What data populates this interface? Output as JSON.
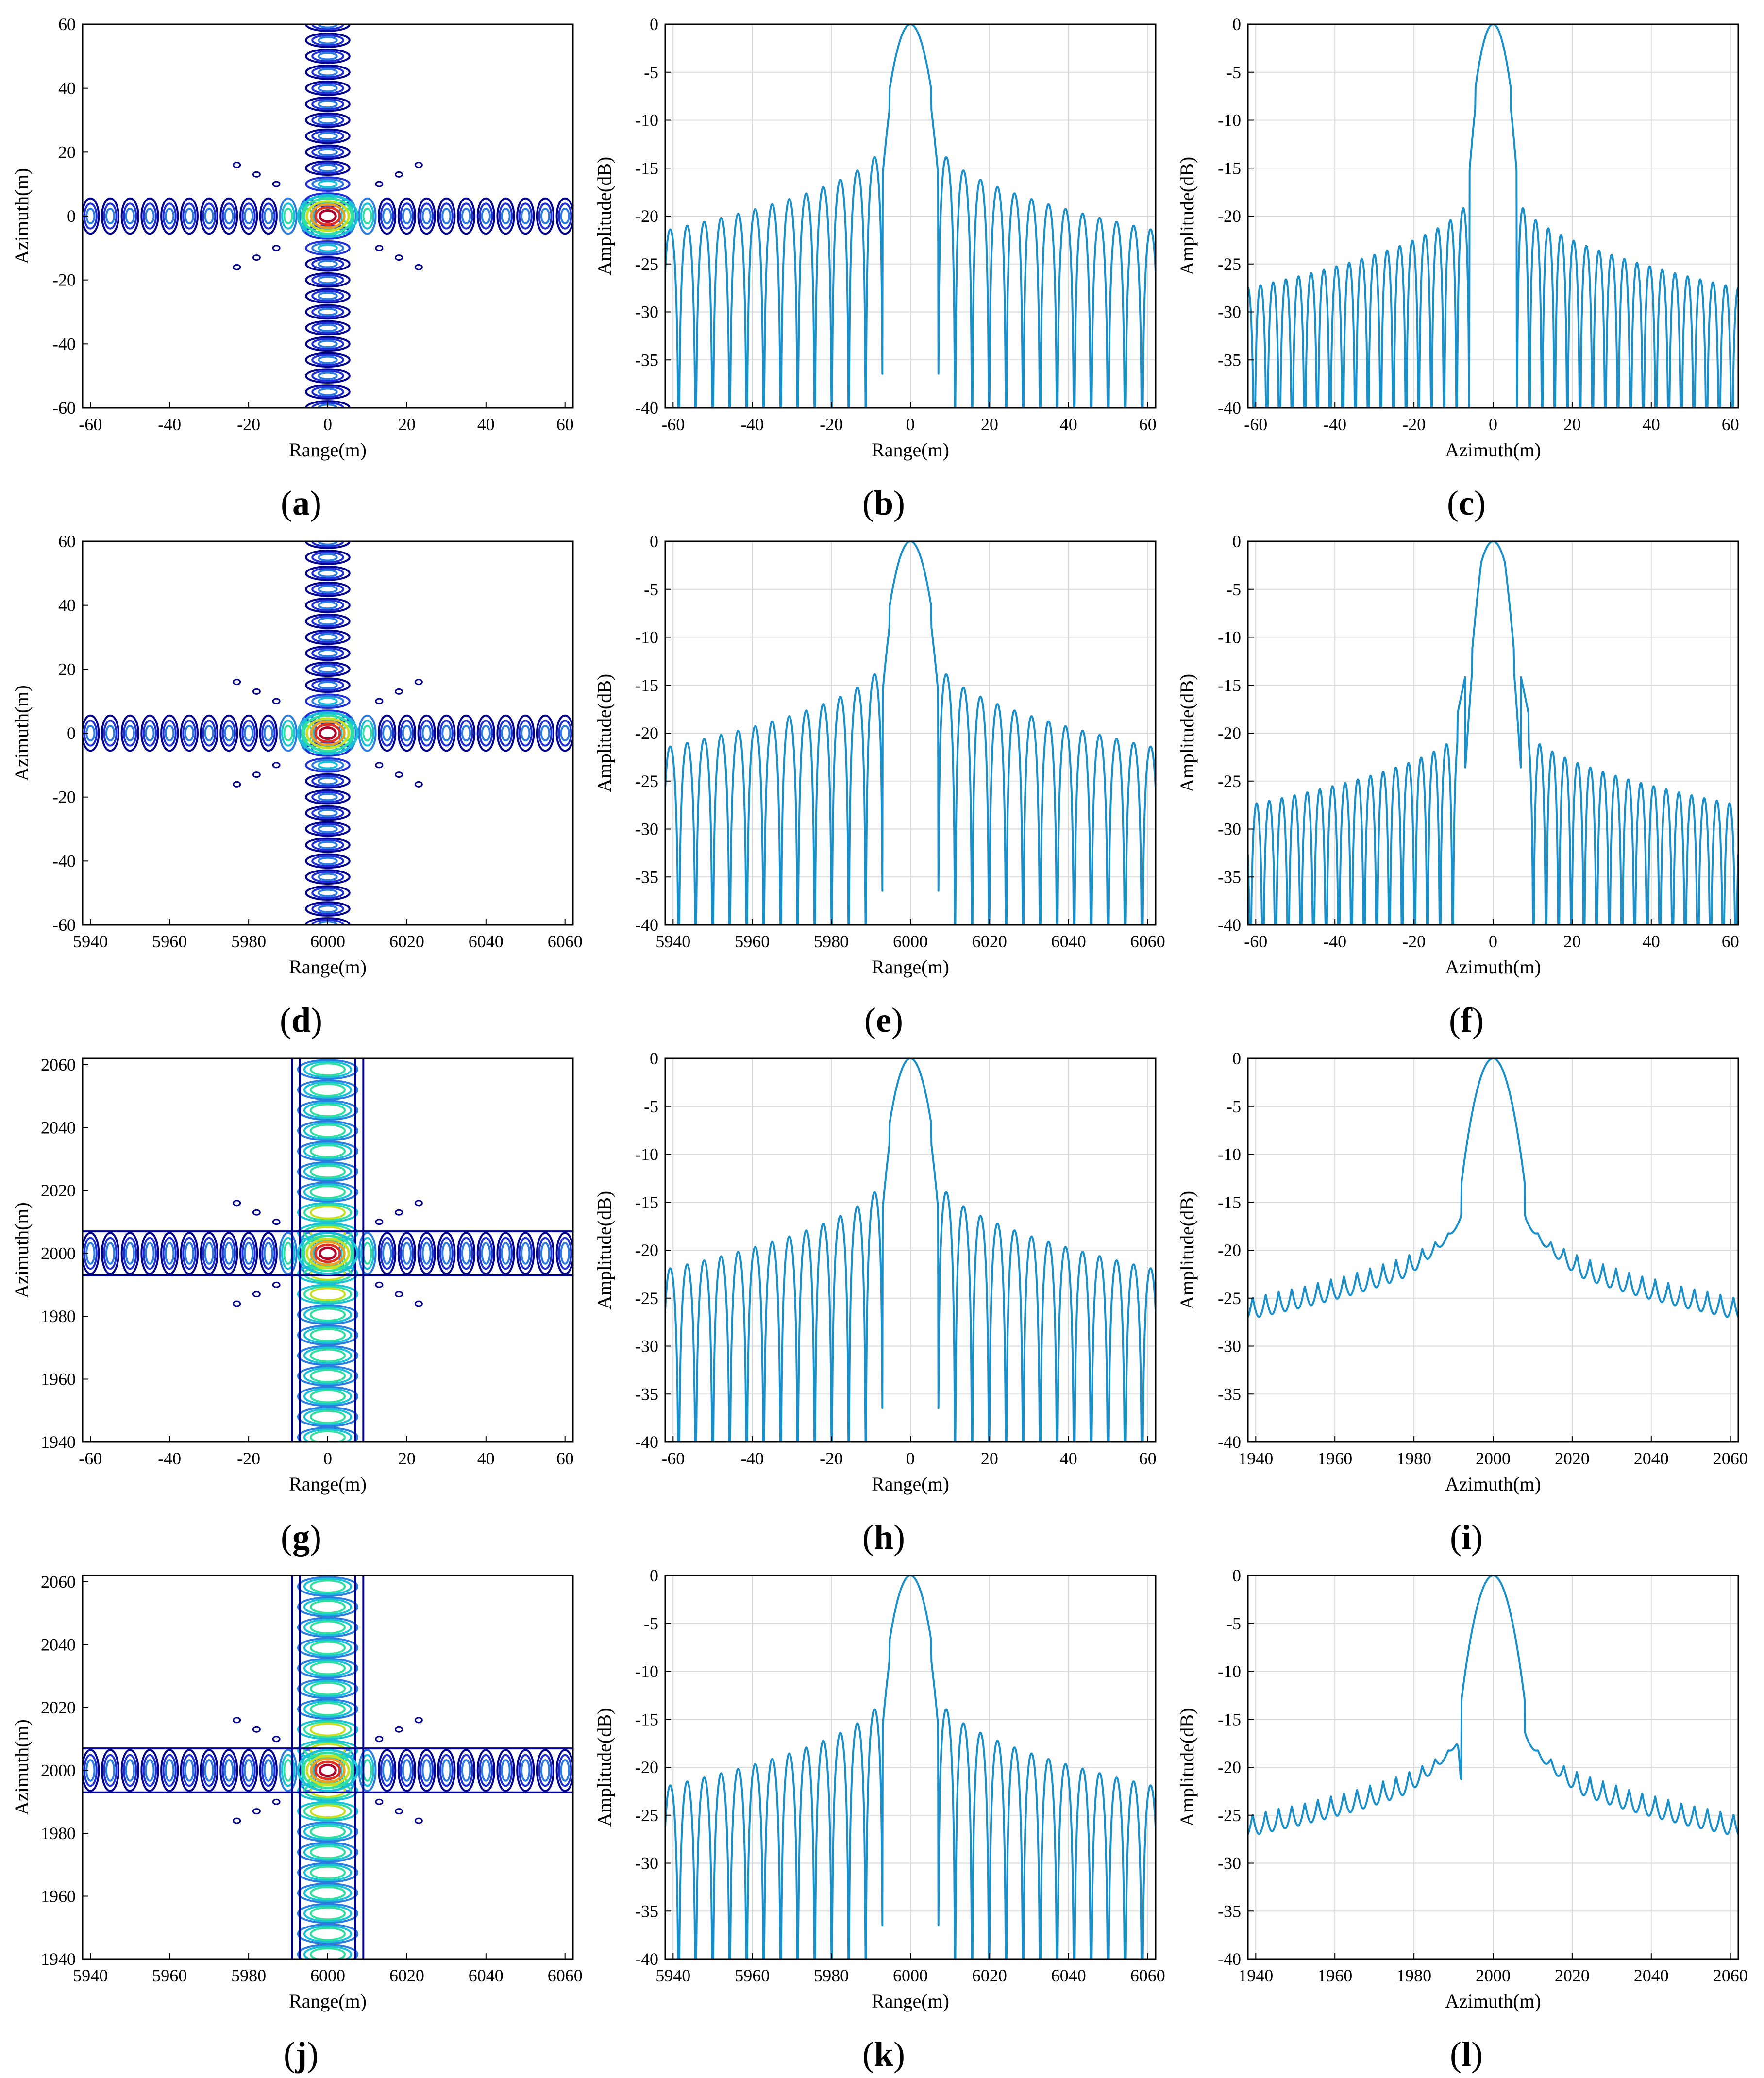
{
  "colors": {
    "line": "#1a8fc9",
    "grid": "#d9d9d9",
    "contour_levels": [
      "#00008c",
      "#1f2fd6",
      "#2c7be0",
      "#18c0d8",
      "#30e0a0",
      "#c8e020",
      "#f0a020",
      "#e03020",
      "#b0002a"
    ]
  },
  "chart_data": [
    {
      "id": "a",
      "type": "contour",
      "label_text": "a",
      "xlabel": "Range(m)",
      "ylabel": "Azimuth(m)",
      "xlim": [
        -62,
        62
      ],
      "ylim": [
        -60,
        60
      ],
      "xticks": [
        -60,
        -40,
        -20,
        0,
        20,
        40,
        60
      ],
      "yticks": [
        -60,
        -40,
        -20,
        0,
        20,
        40,
        60
      ],
      "center": [
        0,
        0
      ],
      "range_lobes": 12,
      "azimuth_lobes": 12,
      "lobe_spacing": 5,
      "spread": "none"
    },
    {
      "id": "b",
      "type": "line",
      "label_text": "b",
      "xlabel": "Range(m)",
      "ylabel": "Amplitude(dB)",
      "xlim": [
        -62,
        62
      ],
      "ylim": [
        -40,
        0
      ],
      "xticks": [
        -60,
        -40,
        -20,
        0,
        20,
        40,
        60
      ],
      "yticks": [
        0,
        -5,
        -10,
        -15,
        -20,
        -25,
        -30,
        -35,
        -40
      ],
      "center": 0,
      "mainlobe_halfwidth": 7,
      "first_sidelobe_db": -12,
      "far_sidelobe_db": -21.5,
      "sidelobe_spacing": 4.3,
      "asymmetry_db": 0
    },
    {
      "id": "c",
      "type": "line",
      "label_text": "c",
      "xlabel": "Azimuth(m)",
      "ylabel": "Amplitude(dB)",
      "xlim": [
        -62,
        62
      ],
      "ylim": [
        -40,
        0
      ],
      "xticks": [
        -60,
        -40,
        -20,
        0,
        20,
        40,
        60
      ],
      "yticks": [
        0,
        -5,
        -10,
        -15,
        -20,
        -25,
        -30,
        -35,
        -40
      ],
      "center": 0,
      "mainlobe_halfwidth": 6,
      "first_sidelobe_db": -17.5,
      "far_sidelobe_db": -27.5,
      "sidelobe_spacing": 3.2,
      "asymmetry_db": 0
    },
    {
      "id": "d",
      "type": "contour",
      "label_text": "d",
      "xlabel": "Range(m)",
      "ylabel": "Azimuth(m)",
      "xlim": [
        5938,
        6062
      ],
      "ylim": [
        -60,
        60
      ],
      "xticks": [
        5940,
        5960,
        5980,
        6000,
        6020,
        6040,
        6060
      ],
      "yticks": [
        -60,
        -40,
        -20,
        0,
        20,
        40,
        60
      ],
      "center": [
        6000,
        0
      ],
      "range_lobes": 12,
      "azimuth_lobes": 12,
      "lobe_spacing": 5,
      "spread": "none"
    },
    {
      "id": "e",
      "type": "line",
      "label_text": "e",
      "xlabel": "Range(m)",
      "ylabel": "Amplitude(dB)",
      "xlim": [
        5938,
        6062
      ],
      "ylim": [
        -40,
        0
      ],
      "xticks": [
        5940,
        5960,
        5980,
        6000,
        6020,
        6040,
        6060
      ],
      "yticks": [
        0,
        -5,
        -10,
        -15,
        -20,
        -25,
        -30,
        -35,
        -40
      ],
      "center": 6000,
      "mainlobe_halfwidth": 7,
      "first_sidelobe_db": -12,
      "far_sidelobe_db": -21.5,
      "sidelobe_spacing": 4.3,
      "asymmetry_db": 0
    },
    {
      "id": "f",
      "type": "line",
      "label_text": "f",
      "xlabel": "Azimuth(m)",
      "ylabel": "Amplitude(dB)",
      "xlim": [
        -62,
        62
      ],
      "ylim": [
        -40,
        0
      ],
      "xticks": [
        -60,
        -40,
        -20,
        0,
        20,
        40,
        60
      ],
      "yticks": [
        0,
        -5,
        -10,
        -15,
        -20,
        -25,
        -30,
        -35,
        -40
      ],
      "center": 0,
      "mainlobe_halfwidth": 7,
      "first_sidelobe_db": -18.5,
      "far_sidelobe_db": -27.5,
      "sidelobe_spacing": 3.2,
      "asymmetry_db": 0,
      "shoulder": true
    },
    {
      "id": "g",
      "type": "contour",
      "label_text": "g",
      "xlabel": "Range(m)",
      "ylabel": "Azimuth(m)",
      "xlim": [
        -62,
        62
      ],
      "ylim": [
        1940,
        2062
      ],
      "xticks": [
        -60,
        -40,
        -20,
        0,
        20,
        40,
        60
      ],
      "yticks": [
        1940,
        1960,
        1980,
        2000,
        2020,
        2040,
        2060
      ],
      "center": [
        0,
        2000
      ],
      "range_lobes": 12,
      "azimuth_lobes": 10,
      "lobe_spacing": 5,
      "spread": "defocused"
    },
    {
      "id": "h",
      "type": "line",
      "label_text": "h",
      "xlabel": "Range(m)",
      "ylabel": "Amplitude(dB)",
      "xlim": [
        -62,
        62
      ],
      "ylim": [
        -40,
        0
      ],
      "xticks": [
        -60,
        -40,
        -20,
        0,
        20,
        40,
        60
      ],
      "yticks": [
        0,
        -5,
        -10,
        -15,
        -20,
        -25,
        -30,
        -35,
        -40
      ],
      "center": 0,
      "mainlobe_halfwidth": 7,
      "first_sidelobe_db": -12,
      "far_sidelobe_db": -22,
      "sidelobe_spacing": 4.3,
      "asymmetry_db": 0
    },
    {
      "id": "i",
      "type": "smooth",
      "label_text": "i",
      "xlabel": "Azimuth(m)",
      "ylabel": "Amplitude(dB)",
      "xlim": [
        1938,
        2062
      ],
      "ylim": [
        -40,
        0
      ],
      "xticks": [
        1940,
        1960,
        1980,
        2000,
        2020,
        2040,
        2060
      ],
      "yticks": [
        0,
        -5,
        -10,
        -15,
        -20,
        -25,
        -30,
        -35,
        -40
      ],
      "center": 2000,
      "mainlobe_halfwidth": 8,
      "edge_db": -25,
      "near_db": -16,
      "ripple_db": 2.2,
      "ripple_spacing": 3.3,
      "dip": false
    },
    {
      "id": "j",
      "type": "contour",
      "label_text": "j",
      "xlabel": "Range(m)",
      "ylabel": "Azimuth(m)",
      "xlim": [
        5938,
        6062
      ],
      "ylim": [
        1940,
        2062
      ],
      "xticks": [
        5940,
        5960,
        5980,
        6000,
        6020,
        6040,
        6060
      ],
      "yticks": [
        1940,
        1960,
        1980,
        2000,
        2020,
        2040,
        2060
      ],
      "center": [
        6000,
        2000
      ],
      "range_lobes": 12,
      "azimuth_lobes": 10,
      "lobe_spacing": 5,
      "spread": "defocused"
    },
    {
      "id": "k",
      "type": "line",
      "label_text": "k",
      "xlabel": "Range(m)",
      "ylabel": "Amplitude(dB)",
      "xlim": [
        5938,
        6062
      ],
      "ylim": [
        -40,
        0
      ],
      "xticks": [
        5940,
        5960,
        5980,
        6000,
        6020,
        6040,
        6060
      ],
      "yticks": [
        0,
        -5,
        -10,
        -15,
        -20,
        -25,
        -30,
        -35,
        -40
      ],
      "center": 6000,
      "mainlobe_halfwidth": 7,
      "first_sidelobe_db": -12,
      "far_sidelobe_db": -22,
      "sidelobe_spacing": 4.3,
      "asymmetry_db": 0
    },
    {
      "id": "l",
      "type": "smooth",
      "label_text": "l",
      "xlabel": "Azimuth(m)",
      "ylabel": "Amplitude(dB)",
      "xlim": [
        1938,
        2062
      ],
      "ylim": [
        -40,
        0
      ],
      "xticks": [
        1940,
        1960,
        1980,
        2000,
        2020,
        2040,
        2060
      ],
      "yticks": [
        0,
        -5,
        -10,
        -15,
        -20,
        -25,
        -30,
        -35,
        -40
      ],
      "center": 2000,
      "mainlobe_halfwidth": 8,
      "edge_db": -25,
      "near_db": -16,
      "ripple_db": 2.2,
      "ripple_spacing": 3.3,
      "dip": true
    }
  ]
}
